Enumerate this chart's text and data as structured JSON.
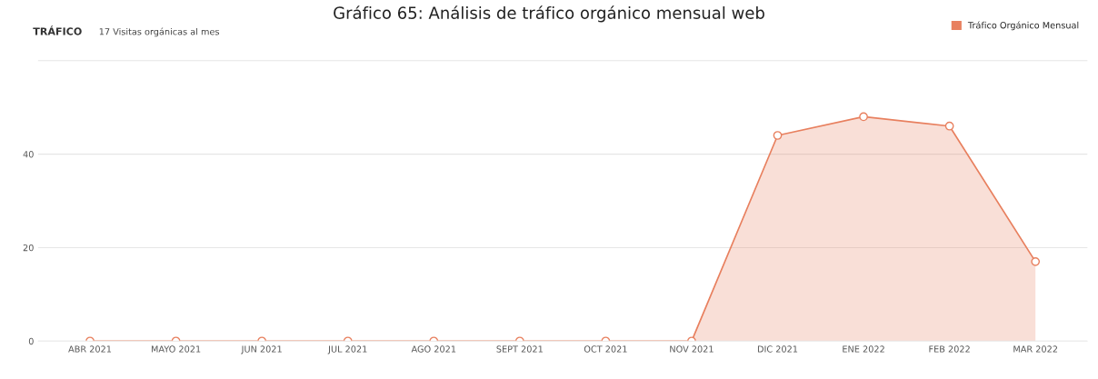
{
  "chart_data": {
    "type": "area",
    "title": "Gráfico 65: Análisis de tráfico orgánico mensual web",
    "subtitle": "TRÁFICO",
    "annotations": [
      "17 Visitas orgánicas al mes"
    ],
    "categories": [
      "ABR 2021",
      "MAYO 2021",
      "JUN 2021",
      "JUL 2021",
      "AGO 2021",
      "SEPT 2021",
      "OCT 2021",
      "NOV 2021",
      "DIC 2021",
      "ENE 2022",
      "FEB 2022",
      "MAR 2022"
    ],
    "series": [
      {
        "name": "Tráfico Orgánico Mensual",
        "color": "#e8805f",
        "values": [
          0,
          0,
          0,
          0,
          0,
          0,
          0,
          0,
          44,
          48,
          46,
          17
        ]
      }
    ],
    "ylim": [
      0,
      60
    ],
    "yticks": [
      0,
      20,
      40,
      {
        "value": 60,
        "label": null
      }
    ],
    "grid": "y",
    "legend": "top right",
    "marker": "circle"
  }
}
